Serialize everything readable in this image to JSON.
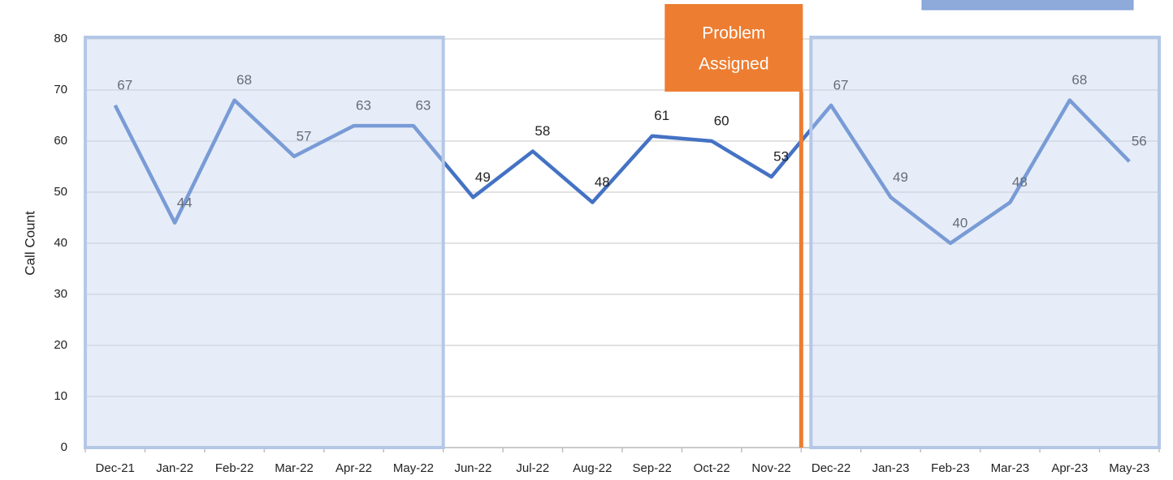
{
  "chart_data": {
    "type": "line",
    "y_label": "Call Count",
    "annotation": [
      "Problem",
      "Assigned"
    ],
    "categories": [
      "Dec-21",
      "Jan-22",
      "Feb-22",
      "Mar-22",
      "Apr-22",
      "May-22",
      "Jun-22",
      "Jul-22",
      "Aug-22",
      "Sep-22",
      "Oct-22",
      "Nov-22",
      "Dec-22",
      "Jan-23",
      "Feb-23",
      "Mar-23",
      "Apr-23",
      "May-23"
    ],
    "values": [
      67,
      44,
      68,
      57,
      63,
      63,
      49,
      58,
      48,
      61,
      60,
      53,
      67,
      49,
      40,
      48,
      68,
      56
    ],
    "color": "#4472c4",
    "ylim": [
      0,
      80
    ],
    "yticks": [
      0,
      10,
      20,
      30,
      40,
      50,
      60,
      70,
      80
    ],
    "grid": true
  }
}
